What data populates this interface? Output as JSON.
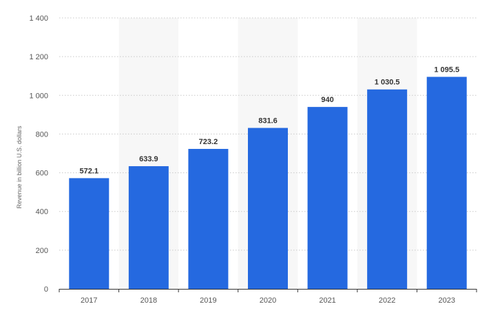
{
  "chart_data": {
    "type": "bar",
    "title": "",
    "xlabel": "",
    "ylabel": "Revenue in billion U.S. dollars",
    "categories": [
      "2017",
      "2018",
      "2019",
      "2020",
      "2021",
      "2022",
      "2023"
    ],
    "values": [
      572.1,
      633.9,
      723.2,
      831.6,
      940,
      1030.5,
      1095.5
    ],
    "value_labels": [
      "572.1",
      "633.9",
      "723.2",
      "831.6",
      "940",
      "1 030.5",
      "1 095.5"
    ],
    "ylim": [
      0,
      1400
    ],
    "yticks": [
      0,
      200,
      400,
      600,
      800,
      1000,
      1200,
      1400
    ],
    "ytick_labels": [
      "0",
      "200",
      "400",
      "600",
      "800",
      "1 000",
      "1 200",
      "1 400"
    ],
    "grid": true,
    "legend": "none",
    "colors": {
      "bar": "#2569e0",
      "grid": "#c8c8c8",
      "band": "#f7f7f7",
      "axis": "#333333"
    }
  }
}
